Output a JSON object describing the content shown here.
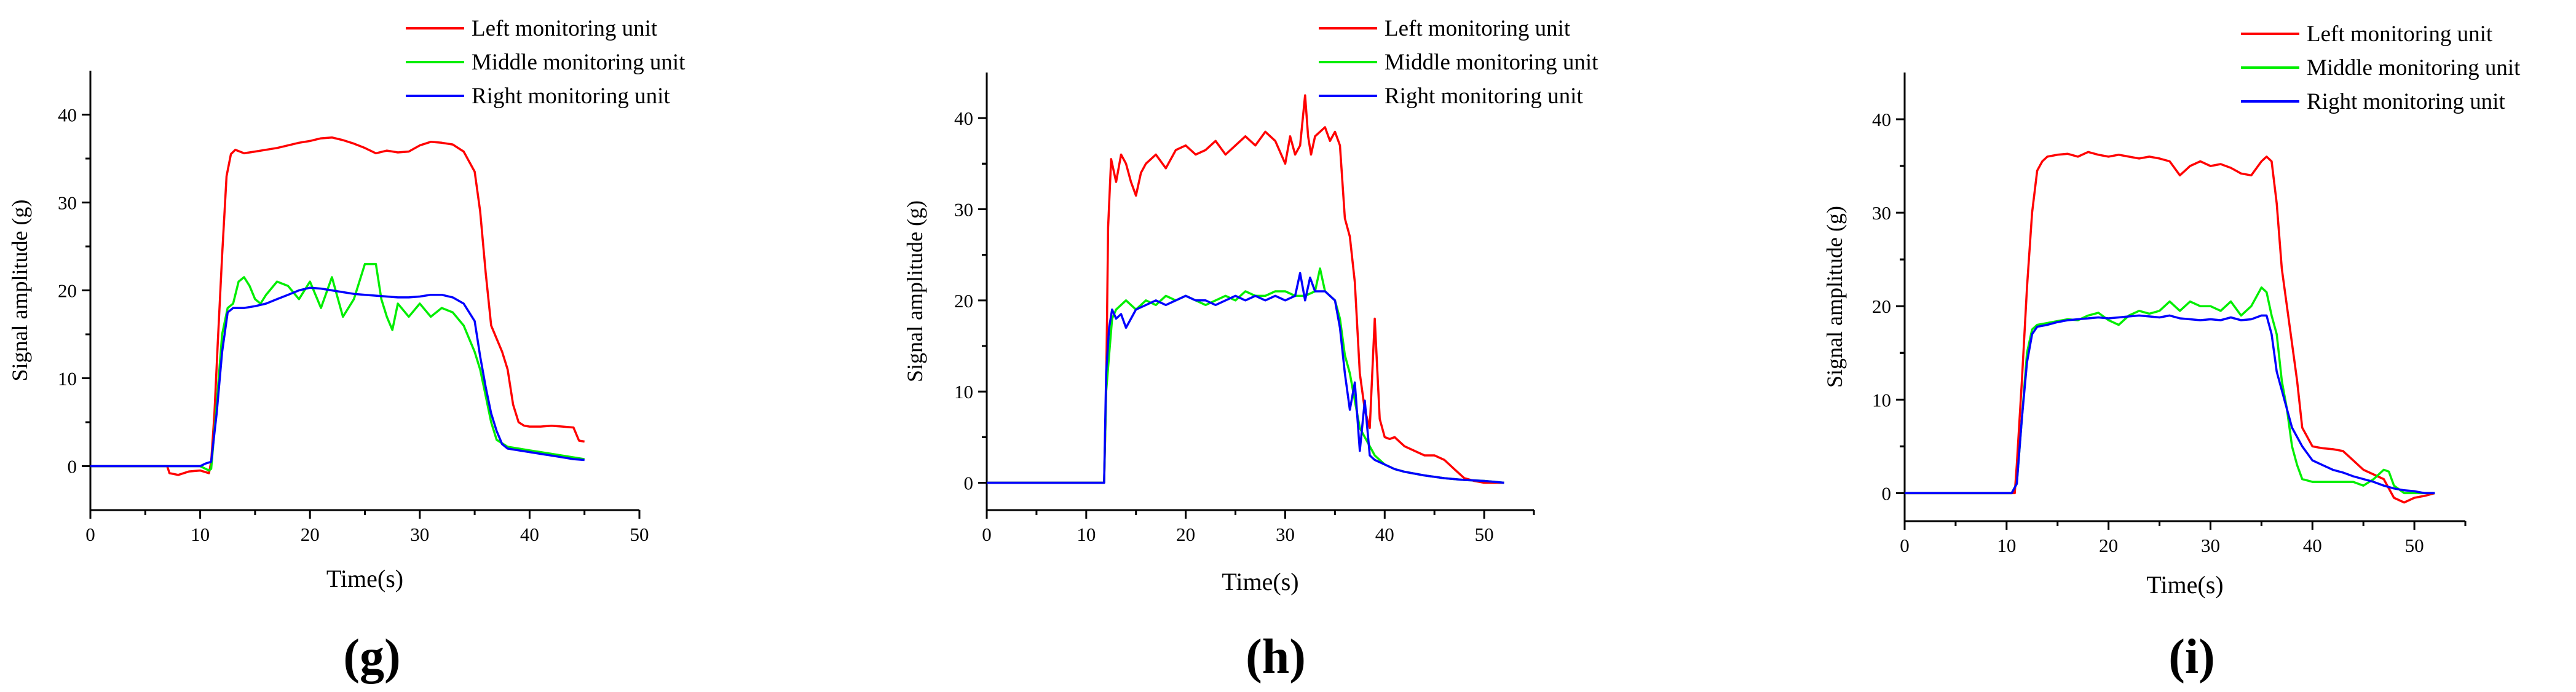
{
  "chart_data": [
    {
      "type": "line",
      "panel_label": "(g)",
      "xlabel": "Time(s)",
      "ylabel": "Signal amplitude (g)",
      "xlim": [
        0,
        50
      ],
      "ylim": [
        -5,
        45
      ],
      "xticks": [
        0,
        10,
        20,
        30,
        40,
        50
      ],
      "yticks": [
        0,
        10,
        20,
        30,
        40
      ],
      "legend_position": "top-right",
      "grid": false,
      "series": [
        {
          "name": "Left monitoring unit",
          "color": "#ff0000",
          "x": [
            0,
            7,
            7.2,
            8,
            9,
            10,
            10.8,
            11,
            11.3,
            11.6,
            12,
            12.4,
            12.8,
            13.2,
            14,
            15,
            16,
            17,
            18,
            19,
            20,
            21,
            22,
            23,
            24,
            25,
            26,
            27,
            28,
            29,
            30,
            31,
            32,
            33,
            34,
            35,
            35.5,
            36,
            36.5,
            37,
            37.5,
            38,
            38.5,
            39,
            39.5,
            40,
            41,
            42,
            43,
            44,
            44.5,
            45
          ],
          "y": [
            0,
            0,
            -0.8,
            -1,
            -0.6,
            -0.5,
            -0.8,
            0.5,
            6,
            14,
            24,
            33,
            35.5,
            36,
            35.6,
            35.8,
            36,
            36.2,
            36.5,
            36.8,
            37,
            37.3,
            37.4,
            37.1,
            36.7,
            36.2,
            35.6,
            35.9,
            35.7,
            35.8,
            36.5,
            36.9,
            36.8,
            36.6,
            35.8,
            33.5,
            29,
            22,
            16,
            14.5,
            13,
            11,
            7,
            5,
            4.6,
            4.5,
            4.5,
            4.6,
            4.5,
            4.4,
            2.9,
            2.8
          ]
        },
        {
          "name": "Middle monitoring unit",
          "color": "#00ee00",
          "x": [
            0,
            10,
            10.8,
            11,
            11.5,
            12,
            12.5,
            13,
            13.5,
            14,
            14.5,
            15,
            15.5,
            16,
            17,
            18,
            19,
            20,
            21,
            22,
            23,
            24,
            25,
            26,
            26.5,
            27,
            27.5,
            28,
            29,
            30,
            31,
            32,
            33,
            34,
            35,
            35.5,
            36,
            36.5,
            37,
            38,
            39,
            40,
            41,
            42,
            43,
            44,
            45
          ],
          "y": [
            0,
            0,
            -0.5,
            -0.3,
            7,
            15,
            18,
            18.5,
            21,
            21.5,
            20.5,
            19,
            18.5,
            19.5,
            21,
            20.5,
            19,
            21,
            18,
            21.5,
            17,
            19,
            23,
            23,
            19,
            17,
            15.5,
            18.5,
            17,
            18.5,
            17,
            18,
            17.5,
            16,
            13,
            11,
            8,
            5,
            3,
            2.2,
            2,
            1.8,
            1.6,
            1.4,
            1.2,
            1.0,
            0.8
          ]
        },
        {
          "name": "Right monitoring unit",
          "color": "#0000ff",
          "x": [
            0,
            10,
            10.5,
            11,
            11.5,
            12,
            12.5,
            13,
            14,
            15,
            16,
            17,
            18,
            19,
            20,
            21,
            22,
            23,
            24,
            25,
            26,
            27,
            28,
            29,
            30,
            31,
            32,
            33,
            34,
            35,
            35.5,
            36,
            36.5,
            37,
            37.5,
            38,
            39,
            40,
            41,
            42,
            43,
            44,
            45
          ],
          "y": [
            0,
            0,
            0.3,
            0.5,
            6,
            13,
            17.5,
            18,
            18,
            18.2,
            18.5,
            19,
            19.5,
            20,
            20.3,
            20.2,
            20,
            19.8,
            19.6,
            19.5,
            19.4,
            19.3,
            19.2,
            19.2,
            19.3,
            19.5,
            19.5,
            19.2,
            18.5,
            16.5,
            12.5,
            9,
            6,
            4,
            2.5,
            2.0,
            1.8,
            1.6,
            1.4,
            1.2,
            1.0,
            0.8,
            0.7
          ]
        }
      ]
    },
    {
      "type": "line",
      "panel_label": "(h)",
      "xlabel": "Time(s)",
      "ylabel": "Signal amplitude (g)",
      "xlim": [
        0,
        55
      ],
      "ylim": [
        -3,
        45
      ],
      "xticks": [
        0,
        10,
        20,
        30,
        40,
        50
      ],
      "yticks": [
        0,
        10,
        20,
        30,
        40
      ],
      "legend_position": "top-right",
      "grid": false,
      "series": [
        {
          "name": "Left monitoring unit",
          "color": "#ff0000",
          "x": [
            0,
            11.8,
            12,
            12.2,
            12.5,
            13,
            13.5,
            14,
            14.5,
            15,
            15.5,
            16,
            17,
            18,
            19,
            20,
            21,
            22,
            23,
            24,
            25,
            26,
            27,
            28,
            29,
            30,
            30.5,
            31,
            31.5,
            32,
            32.3,
            32.6,
            33,
            34,
            34.5,
            35,
            35.5,
            36,
            36.5,
            37,
            37.5,
            38,
            38.5,
            39,
            39.5,
            40,
            40.5,
            41,
            41.5,
            42,
            43,
            44,
            45,
            46,
            47,
            48,
            49,
            50,
            51,
            52
          ],
          "y": [
            0,
            0,
            10,
            28,
            35.5,
            33,
            36,
            35,
            33,
            31.5,
            34,
            35,
            36,
            34.5,
            36.5,
            37,
            36,
            36.5,
            37.5,
            36,
            37,
            38,
            37,
            38.5,
            37.5,
            35,
            38,
            36,
            37,
            42.5,
            38,
            36,
            38,
            39,
            37.5,
            38.5,
            37,
            29,
            27,
            22,
            12,
            8,
            6,
            18,
            7,
            5,
            4.8,
            5,
            4.5,
            4,
            3.5,
            3,
            3,
            2.5,
            1.5,
            0.5,
            0.2,
            0,
            0,
            0
          ]
        },
        {
          "name": "Middle monitoring unit",
          "color": "#00ee00",
          "x": [
            0,
            11.8,
            12,
            12.3,
            12.6,
            13,
            14,
            15,
            16,
            17,
            18,
            19,
            20,
            21,
            22,
            23,
            24,
            25,
            26,
            27,
            28,
            29,
            30,
            31,
            32,
            33,
            33.5,
            34,
            35,
            35.5,
            36,
            36.5,
            37,
            37.5,
            38,
            39,
            40,
            41,
            42,
            44,
            46,
            48,
            50,
            52
          ],
          "y": [
            0,
            0,
            10,
            14,
            18,
            19,
            20,
            19,
            20,
            19.5,
            20.5,
            20,
            20.5,
            20,
            19.5,
            20,
            20.5,
            20,
            21,
            20.5,
            20.5,
            21,
            21,
            20.5,
            20.5,
            21,
            23.5,
            21,
            20,
            18,
            14,
            12,
            9,
            6,
            5,
            3,
            2,
            1.5,
            1.2,
            0.8,
            0.5,
            0.3,
            0.2,
            0
          ]
        },
        {
          "name": "Right monitoring unit",
          "color": "#0000ff",
          "x": [
            0,
            11.8,
            12,
            12.3,
            12.6,
            13,
            13.5,
            14,
            14.5,
            15,
            16,
            17,
            18,
            19,
            20,
            21,
            22,
            23,
            24,
            25,
            26,
            27,
            28,
            29,
            30,
            31,
            31.5,
            32,
            32.5,
            33,
            34,
            35,
            35.5,
            36,
            36.5,
            37,
            37.5,
            38,
            38.5,
            39,
            40,
            41,
            42,
            44,
            46,
            48,
            50,
            52
          ],
          "y": [
            0,
            0,
            12,
            17,
            19,
            18,
            18.5,
            17,
            18,
            19,
            19.5,
            20,
            19.5,
            20,
            20.5,
            20,
            20,
            19.5,
            20,
            20.5,
            20,
            20.5,
            20,
            20.5,
            20,
            20.5,
            23,
            20,
            22.5,
            21,
            21,
            20,
            17,
            12,
            8,
            11,
            3.5,
            9,
            3,
            2.5,
            2,
            1.5,
            1.2,
            0.8,
            0.5,
            0.3,
            0.2,
            0
          ]
        }
      ]
    },
    {
      "type": "line",
      "panel_label": "(i)",
      "xlabel": "Time(s)",
      "ylabel": "Signal amplitude (g)",
      "xlim": [
        0,
        55
      ],
      "ylim": [
        -3,
        45
      ],
      "xticks": [
        0,
        10,
        20,
        30,
        40,
        50
      ],
      "yticks": [
        0,
        10,
        20,
        30,
        40
      ],
      "legend_position": "top-right",
      "grid": false,
      "series": [
        {
          "name": "Left monitoring unit",
          "color": "#ff0000",
          "x": [
            0,
            10.8,
            11,
            11.5,
            12,
            12.5,
            13,
            13.5,
            14,
            15,
            16,
            17,
            18,
            19,
            20,
            21,
            22,
            23,
            24,
            25,
            26,
            27,
            28,
            29,
            30,
            31,
            32,
            33,
            34,
            35,
            35.5,
            36,
            36.5,
            37,
            37.5,
            38,
            38.5,
            39,
            40,
            41,
            42,
            43,
            44,
            45,
            46,
            47,
            48,
            49,
            50,
            51,
            52
          ],
          "y": [
            0,
            0,
            3,
            12,
            22,
            30,
            34.5,
            35.5,
            36,
            36.2,
            36.3,
            36,
            36.5,
            36.2,
            36,
            36.2,
            36,
            35.8,
            36,
            35.8,
            35.5,
            34,
            35,
            35.5,
            35,
            35.2,
            34.8,
            34.2,
            34,
            35.5,
            36,
            35.5,
            31,
            24,
            20,
            16,
            12,
            7,
            5,
            4.8,
            4.7,
            4.5,
            3.5,
            2.5,
            2,
            1.5,
            -0.5,
            -1,
            -0.5,
            -0.3,
            0
          ]
        },
        {
          "name": "Middle monitoring unit",
          "color": "#00ee00",
          "x": [
            0,
            10.5,
            11,
            11.5,
            12,
            12.5,
            13,
            14,
            15,
            16,
            17,
            18,
            19,
            20,
            21,
            22,
            23,
            24,
            25,
            26,
            27,
            28,
            29,
            30,
            31,
            32,
            33,
            34,
            35,
            35.5,
            36,
            36.5,
            37,
            37.5,
            38,
            38.5,
            39,
            40,
            41,
            42,
            43,
            44,
            45,
            46,
            47,
            47.5,
            48,
            49,
            50,
            51,
            52
          ],
          "y": [
            0,
            0,
            1,
            8,
            15,
            17.5,
            18,
            18.2,
            18.4,
            18.6,
            18.5,
            19,
            19.3,
            18.5,
            18,
            19,
            19.5,
            19.2,
            19.5,
            20.5,
            19.5,
            20.5,
            20,
            20,
            19.5,
            20.5,
            19,
            20,
            22,
            21.5,
            19,
            17,
            12,
            9,
            5,
            3,
            1.5,
            1.2,
            1.2,
            1.2,
            1.2,
            1.2,
            0.8,
            1.5,
            2.5,
            2.3,
            0.8,
            0,
            0,
            0,
            0
          ]
        },
        {
          "name": "Right monitoring unit",
          "color": "#0000ff",
          "x": [
            0,
            10.5,
            11,
            11.5,
            12,
            12.5,
            13,
            14,
            15,
            16,
            17,
            18,
            19,
            20,
            21,
            22,
            23,
            24,
            25,
            26,
            27,
            28,
            29,
            30,
            31,
            32,
            33,
            34,
            35,
            35.5,
            36,
            36.5,
            37,
            37.5,
            38,
            39,
            40,
            41,
            42,
            43,
            44,
            45,
            46,
            47,
            48,
            49,
            50,
            51,
            52
          ],
          "y": [
            0,
            0,
            1,
            8,
            14,
            17,
            17.8,
            18,
            18.3,
            18.5,
            18.6,
            18.7,
            18.8,
            18.7,
            18.8,
            18.9,
            19,
            18.9,
            18.8,
            19,
            18.7,
            18.6,
            18.5,
            18.6,
            18.5,
            18.8,
            18.5,
            18.6,
            19,
            19,
            17,
            13,
            11,
            9,
            7,
            5,
            3.5,
            3,
            2.5,
            2.2,
            1.8,
            1.5,
            1.2,
            0.8,
            0.5,
            0.3,
            0.2,
            0,
            0
          ]
        }
      ]
    }
  ]
}
